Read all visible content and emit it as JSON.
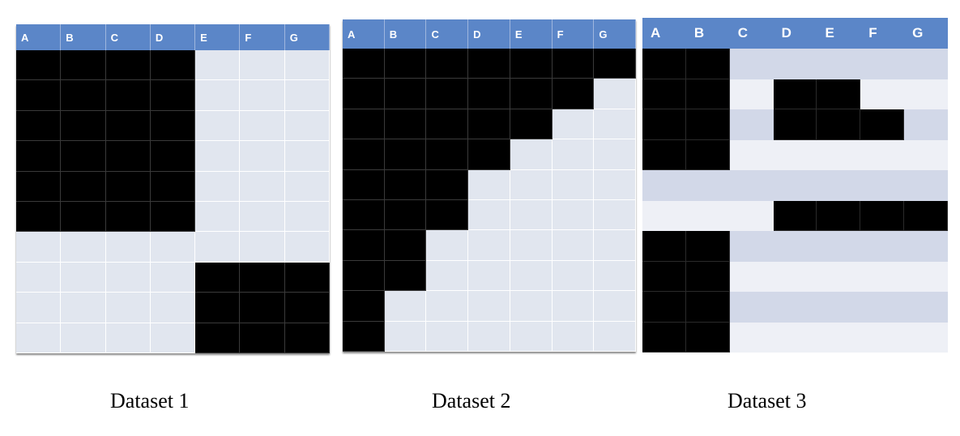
{
  "panels": [
    {
      "caption": "Dataset 1",
      "columns": [
        "A",
        "B",
        "C",
        "D",
        "E",
        "F",
        "G"
      ],
      "rows": [
        [
          1,
          1,
          1,
          1,
          0,
          0,
          0
        ],
        [
          1,
          1,
          1,
          1,
          0,
          0,
          0
        ],
        [
          1,
          1,
          1,
          1,
          0,
          0,
          0
        ],
        [
          1,
          1,
          1,
          1,
          0,
          0,
          0
        ],
        [
          1,
          1,
          1,
          1,
          0,
          0,
          0
        ],
        [
          1,
          1,
          1,
          1,
          0,
          0,
          0
        ],
        [
          0,
          0,
          0,
          0,
          0,
          0,
          0
        ],
        [
          0,
          0,
          0,
          0,
          1,
          1,
          1
        ],
        [
          0,
          0,
          0,
          0,
          1,
          1,
          1
        ],
        [
          0,
          0,
          0,
          0,
          1,
          1,
          1
        ]
      ]
    },
    {
      "caption": "Dataset 2",
      "columns": [
        "A",
        "B",
        "C",
        "D",
        "E",
        "F",
        "G"
      ],
      "rows": [
        [
          1,
          1,
          1,
          1,
          1,
          1,
          1
        ],
        [
          1,
          1,
          1,
          1,
          1,
          1,
          0
        ],
        [
          1,
          1,
          1,
          1,
          1,
          0,
          0
        ],
        [
          1,
          1,
          1,
          1,
          0,
          0,
          0
        ],
        [
          1,
          1,
          1,
          0,
          0,
          0,
          0
        ],
        [
          1,
          1,
          1,
          0,
          0,
          0,
          0
        ],
        [
          1,
          1,
          0,
          0,
          0,
          0,
          0
        ],
        [
          1,
          1,
          0,
          0,
          0,
          0,
          0
        ],
        [
          1,
          0,
          0,
          0,
          0,
          0,
          0
        ],
        [
          1,
          0,
          0,
          0,
          0,
          0,
          0
        ]
      ]
    },
    {
      "caption": "Dataset 3",
      "columns": [
        "A",
        "B",
        "C",
        "D",
        "E",
        "F",
        "G"
      ],
      "rows": [
        [
          1,
          1,
          0,
          0,
          0,
          0,
          0
        ],
        [
          1,
          1,
          0,
          1,
          1,
          0,
          0
        ],
        [
          1,
          1,
          0,
          1,
          1,
          1,
          0
        ],
        [
          1,
          1,
          0,
          0,
          0,
          0,
          0
        ],
        [
          0,
          0,
          0,
          0,
          0,
          0,
          0
        ],
        [
          0,
          0,
          0,
          1,
          1,
          1,
          1
        ],
        [
          1,
          1,
          0,
          0,
          0,
          0,
          0
        ],
        [
          1,
          1,
          0,
          0,
          0,
          0,
          0
        ],
        [
          1,
          1,
          0,
          0,
          0,
          0,
          0
        ],
        [
          1,
          1,
          0,
          0,
          0,
          0,
          0
        ]
      ]
    }
  ]
}
